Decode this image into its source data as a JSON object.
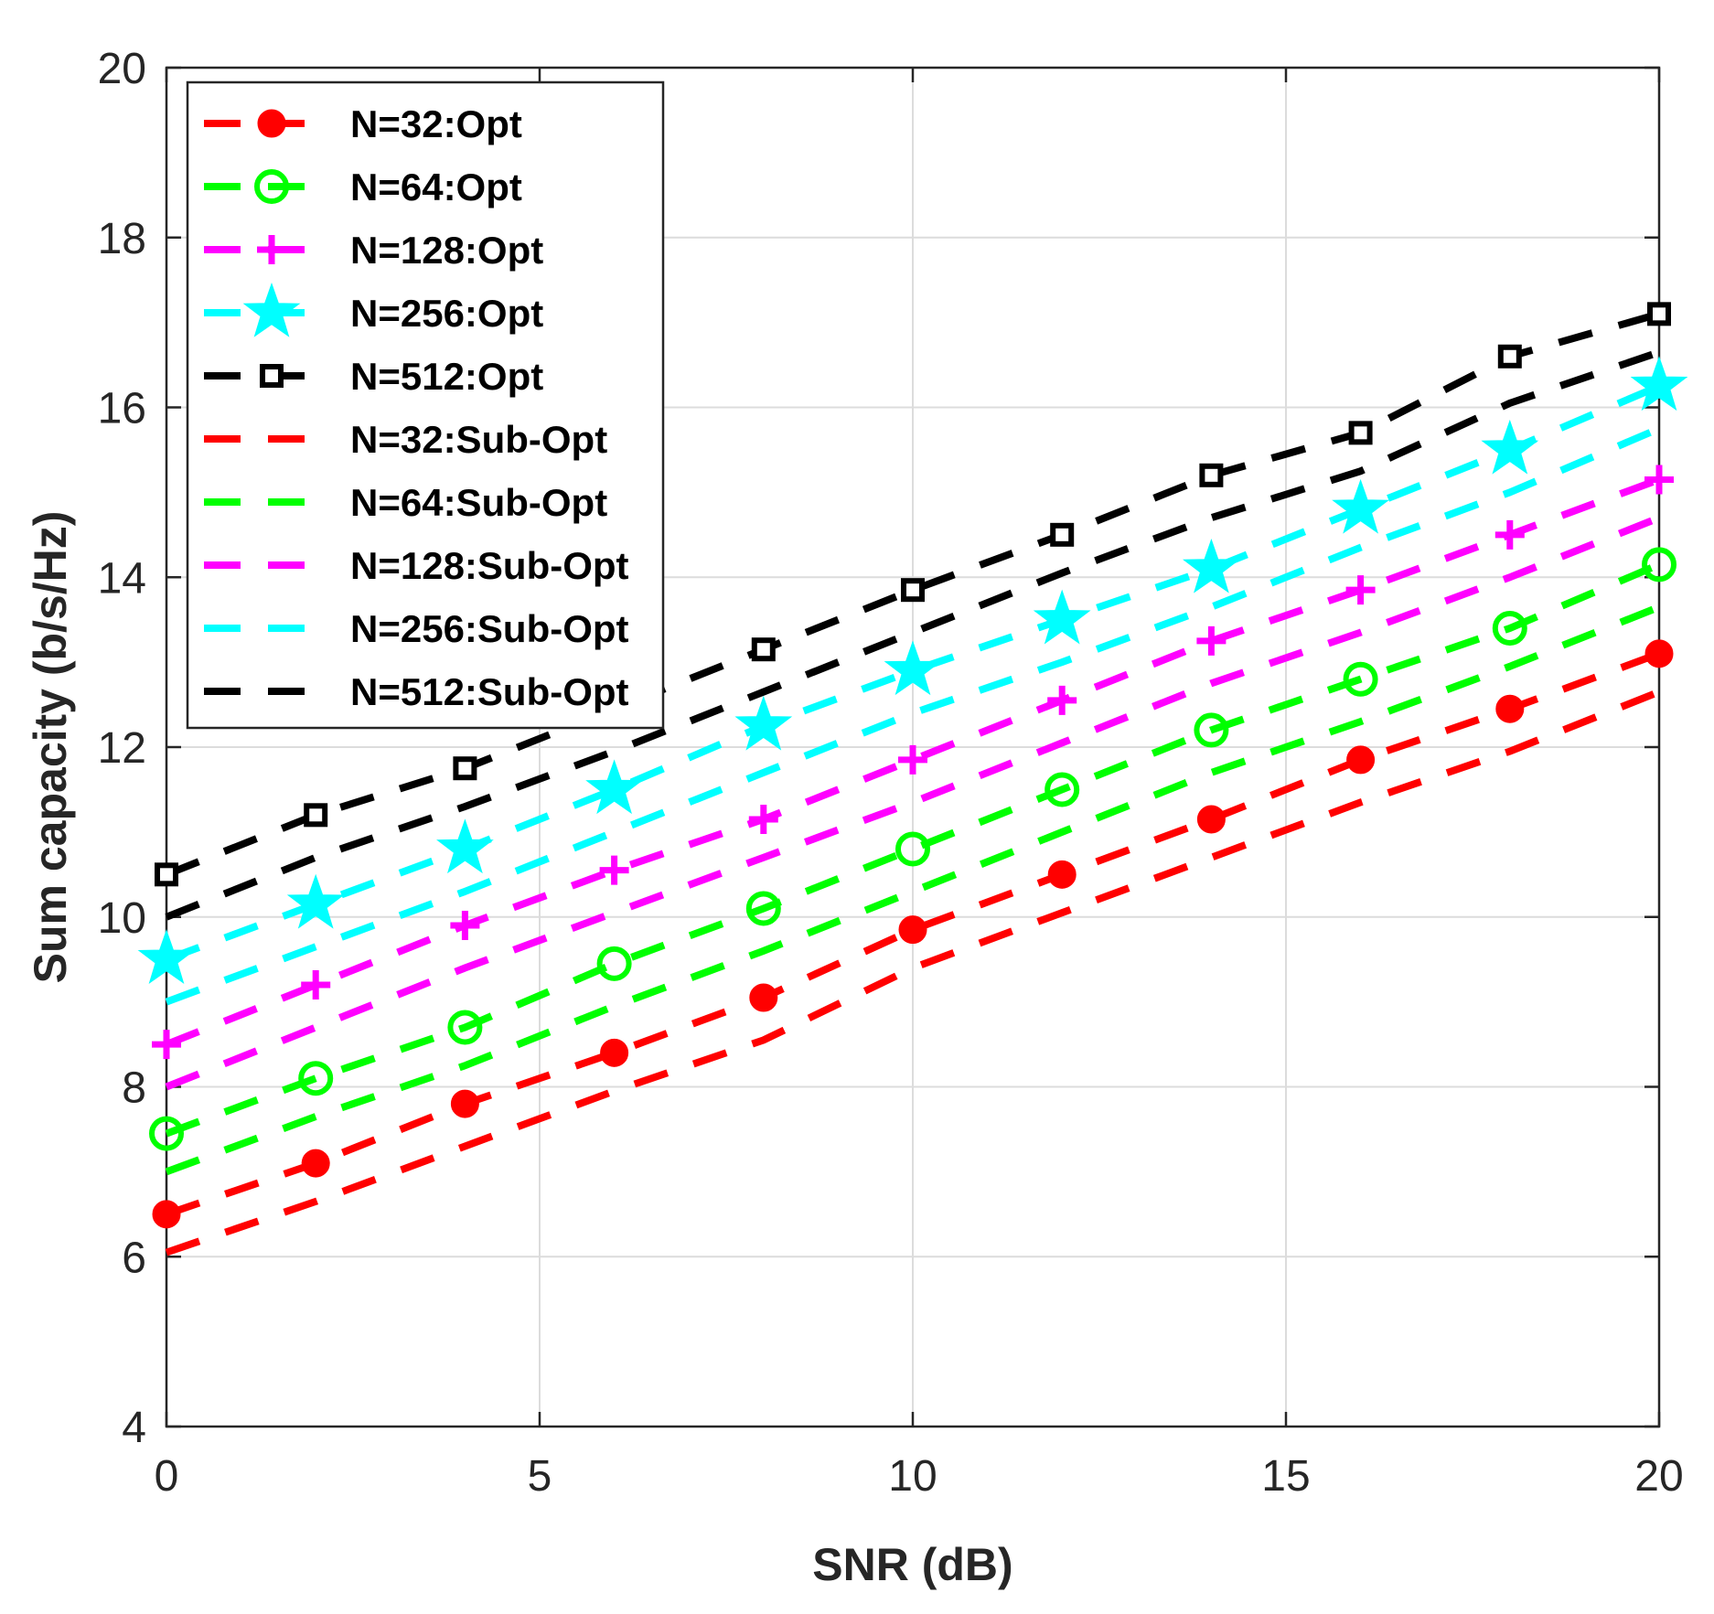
{
  "chart_data": {
    "type": "line",
    "title": "",
    "xlabel": "SNR (dB)",
    "ylabel": "Sum capacity (b/s/Hz)",
    "xlim": [
      0,
      20
    ],
    "ylim": [
      4,
      20
    ],
    "xticks": [
      "0",
      "5",
      "10",
      "15",
      "20"
    ],
    "yticks": [
      "4",
      "6",
      "8",
      "10",
      "12",
      "14",
      "16",
      "18",
      "20"
    ],
    "grid": true,
    "legend_position": "top-left",
    "x": [
      0,
      2,
      4,
      6,
      8,
      10,
      12,
      14,
      16,
      18,
      20
    ],
    "series": [
      {
        "name": "N=32:Opt",
        "color": "#ff0000",
        "marker": "filled-circle",
        "values": [
          6.5,
          7.1,
          7.8,
          8.4,
          9.05,
          9.85,
          10.5,
          11.15,
          11.85,
          12.45,
          13.1
        ]
      },
      {
        "name": "N=64:Opt",
        "color": "#00ff00",
        "marker": "open-circle",
        "values": [
          7.45,
          8.1,
          8.7,
          9.45,
          10.1,
          10.8,
          11.5,
          12.2,
          12.8,
          13.4,
          14.15
        ]
      },
      {
        "name": "N=128:Opt",
        "color": "#ff00ff",
        "marker": "plus",
        "values": [
          8.5,
          9.2,
          9.9,
          10.55,
          11.15,
          11.85,
          12.55,
          13.25,
          13.85,
          14.5,
          15.15
        ]
      },
      {
        "name": "N=256:Opt",
        "color": "#00ffff",
        "marker": "star",
        "values": [
          9.5,
          10.15,
          10.8,
          11.5,
          12.25,
          12.9,
          13.5,
          14.1,
          14.8,
          15.5,
          16.25
        ]
      },
      {
        "name": "N=512:Opt",
        "color": "#000000",
        "marker": "open-square",
        "values": [
          10.5,
          11.2,
          11.75,
          12.45,
          13.15,
          13.85,
          14.5,
          15.2,
          15.7,
          16.6,
          17.1
        ]
      },
      {
        "name": "N=32:Sub-Opt",
        "color": "#ff0000",
        "marker": "none",
        "values": [
          6.05,
          6.65,
          7.3,
          7.95,
          8.55,
          9.4,
          10.05,
          10.7,
          11.35,
          11.95,
          12.65
        ]
      },
      {
        "name": "N=64:Sub-Opt",
        "color": "#00ff00",
        "marker": "none",
        "values": [
          7.0,
          7.65,
          8.25,
          8.95,
          9.6,
          10.3,
          11.0,
          11.7,
          12.3,
          12.95,
          13.65
        ]
      },
      {
        "name": "N=128:Sub-Opt",
        "color": "#ff00ff",
        "marker": "none",
        "values": [
          8.0,
          8.7,
          9.4,
          10.05,
          10.7,
          11.35,
          12.05,
          12.75,
          13.35,
          14.0,
          14.7
        ]
      },
      {
        "name": "N=256:Sub-Opt",
        "color": "#00ffff",
        "marker": "none",
        "values": [
          9.0,
          9.65,
          10.3,
          11.0,
          11.7,
          12.4,
          13.0,
          13.65,
          14.35,
          15.0,
          15.75
        ]
      },
      {
        "name": "N=512:Sub-Opt",
        "color": "#000000",
        "marker": "none",
        "values": [
          10.0,
          10.7,
          11.3,
          11.95,
          12.65,
          13.35,
          14.05,
          14.7,
          15.25,
          16.05,
          16.65
        ]
      }
    ]
  }
}
